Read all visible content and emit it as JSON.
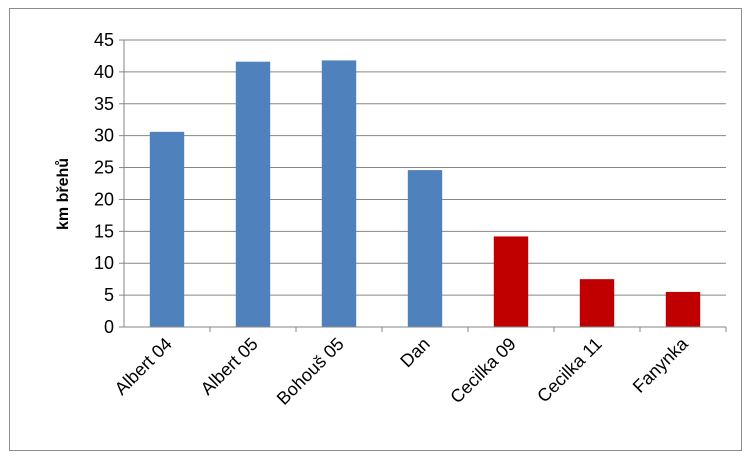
{
  "chart_data": {
    "type": "bar",
    "title": "",
    "xlabel": "",
    "ylabel": "km břehů",
    "categories": [
      "Albert 04",
      "Albert 05",
      "Bohouš 05",
      "Dan",
      "Cecilka 09",
      "Cecilka 11",
      "Fanynka"
    ],
    "values": [
      30.6,
      41.6,
      41.8,
      24.6,
      14.2,
      7.5,
      5.5
    ],
    "bar_colors": [
      "#4f81bd",
      "#4f81bd",
      "#4f81bd",
      "#4f81bd",
      "#c00000",
      "#c00000",
      "#c00000"
    ],
    "ylim": [
      0,
      45
    ],
    "yticks": [
      "0",
      "5",
      "10",
      "15",
      "20",
      "25",
      "30",
      "35",
      "40",
      "45"
    ],
    "grid": true,
    "legend": "none"
  }
}
